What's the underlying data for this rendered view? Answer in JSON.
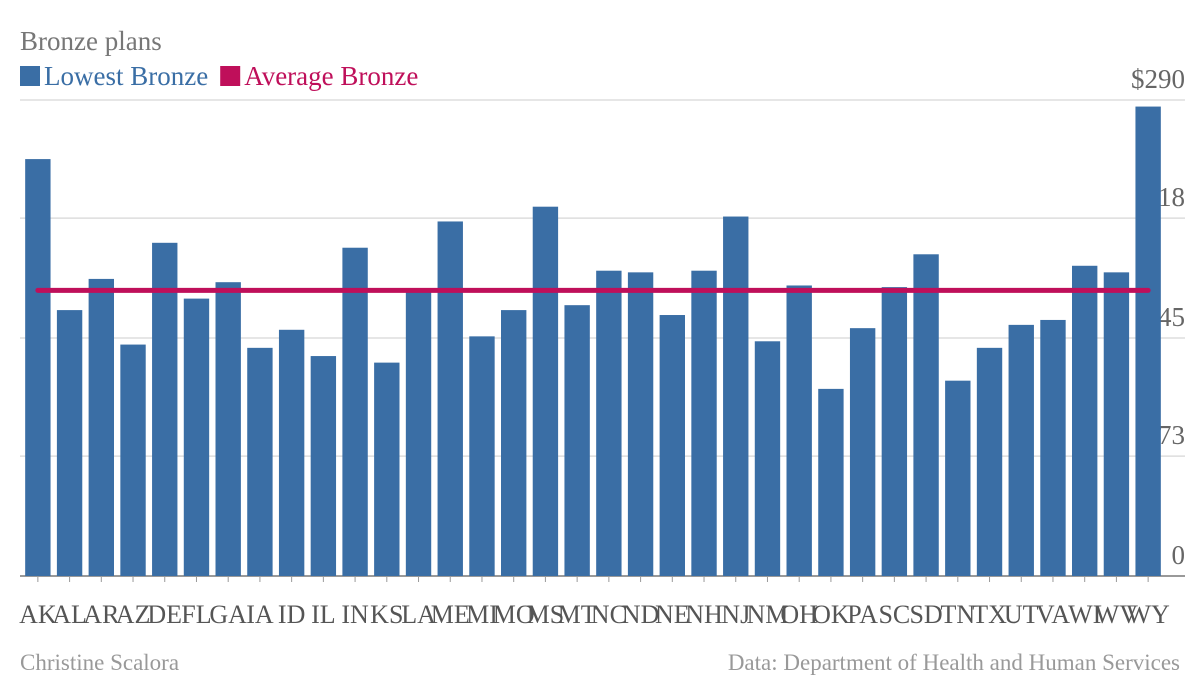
{
  "chart_data": {
    "type": "bar",
    "title": "Bronze plans",
    "categories": [
      "AK",
      "AL",
      "AR",
      "AZ",
      "DE",
      "FL",
      "GA",
      "IA",
      "ID",
      "IL",
      "IN",
      "KS",
      "LA",
      "ME",
      "MI",
      "MO",
      "MS",
      "MT",
      "NC",
      "ND",
      "NE",
      "NH",
      "NJ",
      "NM",
      "OH",
      "OK",
      "PA",
      "SC",
      "SD",
      "TN",
      "TX",
      "UT",
      "VA",
      "WI",
      "WV",
      "WY"
    ],
    "series": [
      {
        "name": "Lowest Bronze",
        "color": "#3a6ea5",
        "type": "bar",
        "values": [
          254,
          162,
          181,
          141,
          203,
          169,
          179,
          139,
          150,
          134,
          200,
          130,
          174,
          216,
          146,
          162,
          225,
          165,
          186,
          185,
          159,
          186,
          219,
          143,
          177,
          114,
          151,
          176,
          196,
          119,
          139,
          153,
          156,
          189,
          185,
          286
        ]
      },
      {
        "name": "Average Bronze",
        "color": "#bf0f5a",
        "type": "line",
        "values": [
          174,
          174,
          174,
          174,
          174,
          174,
          174,
          174,
          174,
          174,
          174,
          174,
          174,
          174,
          174,
          174,
          174,
          174,
          174,
          174,
          174,
          174,
          174,
          174,
          174,
          174,
          174,
          174,
          174,
          174,
          174,
          174,
          174,
          174,
          174,
          174
        ]
      }
    ],
    "ylim": [
      0,
      290
    ],
    "yticks": [
      0,
      73,
      145,
      218,
      {
        "value": 290,
        "label": "$290"
      }
    ],
    "grid": true,
    "author": "Christine Scalora",
    "source": "Data: Department of Health and Human Services"
  }
}
